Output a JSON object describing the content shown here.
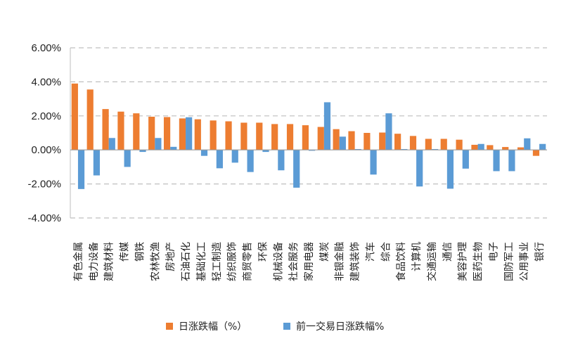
{
  "chart_data": {
    "type": "bar",
    "title": "",
    "xlabel": "",
    "ylabel": "",
    "ylim": [
      -4,
      6
    ],
    "yticks": [
      "6.00%",
      "4.00%",
      "2.00%",
      "0.00%",
      "-2.00%",
      "-4.00%"
    ],
    "ytick_values": [
      6,
      4,
      2,
      0,
      -2,
      -4
    ],
    "grid": true,
    "legend_position": "bottom",
    "categories": [
      "有色金属",
      "电力设备",
      "建筑材料",
      "传媒",
      "钢铁",
      "农林牧渔",
      "房地产",
      "石油石化",
      "基础化工",
      "轻工制造",
      "纺织服饰",
      "商贸零售",
      "环保",
      "机械设备",
      "社会服务",
      "家用电器",
      "煤炭",
      "非银金融",
      "建筑装饰",
      "汽车",
      "综合",
      "食品饮料",
      "计算机",
      "交通运输",
      "通信",
      "美容护理",
      "医药生物",
      "电子",
      "国防军工",
      "公用事业",
      "银行"
    ],
    "series": [
      {
        "name": "日涨跌幅（%）",
        "color": "#ED7D31",
        "values": [
          3.9,
          3.55,
          2.4,
          2.25,
          2.15,
          1.95,
          1.93,
          1.85,
          1.8,
          1.73,
          1.68,
          1.6,
          1.6,
          1.52,
          1.52,
          1.45,
          1.35,
          1.22,
          1.1,
          1.0,
          1.02,
          0.95,
          0.82,
          0.65,
          0.65,
          0.6,
          0.3,
          0.28,
          0.17,
          0.15,
          -0.35
        ]
      },
      {
        "name": "前一交易日涨跌幅%",
        "color": "#5B9BD5",
        "values": [
          -2.3,
          -1.5,
          0.7,
          -1.0,
          -0.12,
          0.7,
          0.18,
          1.92,
          -0.35,
          -1.08,
          -0.75,
          -1.3,
          -0.12,
          -1.2,
          -2.22,
          -0.05,
          2.8,
          0.78,
          0.05,
          -1.45,
          2.15,
          0.05,
          -2.15,
          0.05,
          -2.28,
          -1.1,
          0.35,
          -1.25,
          -1.25,
          0.68,
          0.35
        ]
      }
    ]
  }
}
